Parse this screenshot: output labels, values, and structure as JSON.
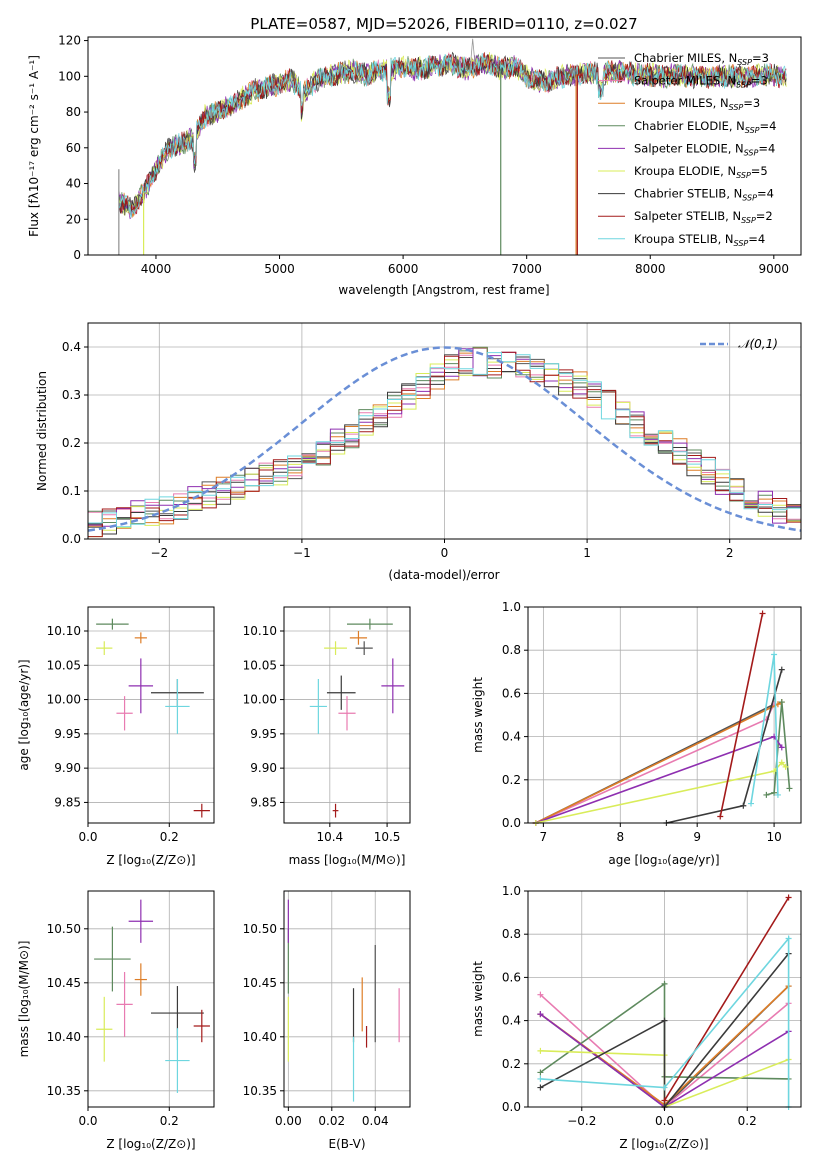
{
  "figure_title": "PLATE=0587, MJD=52026, FIBERID=0110, z=0.027",
  "colors": [
    "#555555",
    "#e87bb1",
    "#dd7d27",
    "#5e8a5e",
    "#8e2fb0",
    "#d9ec5a",
    "#3a3a3a",
    "#a31a1a",
    "#6ed6df"
  ],
  "series_labels": [
    "Chabrier MILES, N$_{SSP}$=3",
    "Salpeter MILES, N$_{SSP}$=3",
    "Kroupa MILES, N$_{SSP}$=3",
    "Chabrier ELODIE, N$_{SSP}$=4",
    "Salpeter ELODIE, N$_{SSP}$=4",
    "Kroupa ELODIE, N$_{SSP}$=5",
    "Chabrier STELIB, N$_{SSP}$=4",
    "Salpeter STELIB, N$_{SSP}$=2",
    "Kroupa STELIB, N$_{SSP}$=4"
  ],
  "series_display": [
    {
      "base": "Chabrier MILES, N",
      "sub": "SSP",
      "tail": "=3"
    },
    {
      "base": "Salpeter MILES, N",
      "sub": "SSP",
      "tail": "=3"
    },
    {
      "base": "Kroupa MILES, N",
      "sub": "SSP",
      "tail": "=3"
    },
    {
      "base": "Chabrier ELODIE, N",
      "sub": "SSP",
      "tail": "=4"
    },
    {
      "base": "Salpeter ELODIE, N",
      "sub": "SSP",
      "tail": "=4"
    },
    {
      "base": "Kroupa ELODIE, N",
      "sub": "SSP",
      "tail": "=5"
    },
    {
      "base": "Chabrier STELIB, N",
      "sub": "SSP",
      "tail": "=4"
    },
    {
      "base": "Salpeter STELIB, N",
      "sub": "SSP",
      "tail": "=2"
    },
    {
      "base": "Kroupa STELIB, N",
      "sub": "SSP",
      "tail": "=4"
    }
  ],
  "chart_data": [
    {
      "type": "line",
      "title": "PLATE=0587, MJD=52026, FIBERID=0110, z=0.027",
      "xlabel": "wavelength [Angstrom, rest frame]",
      "ylabel": "Flux [fλ10⁻¹⁷ erg cm⁻² s⁻¹ A⁻¹]",
      "xlim": [
        3450,
        9220
      ],
      "ylim": [
        0,
        122
      ],
      "xticks": [
        4000,
        5000,
        6000,
        7000,
        8000,
        9000
      ],
      "yticks": [
        0,
        20,
        40,
        60,
        80,
        100,
        120
      ],
      "legend": "upper right",
      "continuum": {
        "x": [
          3700,
          3800,
          3900,
          4000,
          4100,
          4200,
          4300,
          4400,
          4500,
          4600,
          4700,
          4800,
          4900,
          5000,
          5100,
          5200,
          5300,
          5400,
          5500,
          5600,
          5700,
          5800,
          5900,
          6000,
          6100,
          6200,
          6300,
          6400,
          6500,
          6600,
          6700,
          6800,
          6900,
          7000,
          7100,
          7200,
          7300,
          7400,
          7500,
          7600,
          7700,
          7800,
          7900,
          8000,
          8100,
          8200,
          8300,
          8400,
          8500,
          8600,
          8700,
          8800,
          8900,
          9000,
          9100
        ],
        "y": [
          30,
          26,
          35,
          48,
          60,
          62,
          65,
          78,
          80,
          83,
          88,
          92,
          94,
          96,
          98,
          91,
          98,
          100,
          102,
          103,
          101,
          103,
          104,
          105,
          104,
          105,
          106,
          107,
          104,
          106,
          107,
          104,
          106,
          100,
          97,
          98,
          100,
          101,
          102,
          101,
          103,
          102,
          101,
          101,
          100,
          101,
          100,
          100,
          100,
          100,
          100,
          100,
          101,
          100,
          100
        ]
      },
      "drop_lines": [
        {
          "series": 5,
          "x": 3900,
          "y_to": 0
        },
        {
          "series": 3,
          "x": 6790,
          "y_to": 0
        },
        {
          "series": 2,
          "x": 7400,
          "y_to": 0
        },
        {
          "series": 7,
          "x": 7410,
          "y_to": 0
        }
      ]
    },
    {
      "type": "histogram",
      "xlabel": "(data-model)/error",
      "ylabel": "Normed distribution",
      "xlim": [
        -2.5,
        2.5
      ],
      "ylim": [
        0,
        0.45
      ],
      "xticks": [
        -2,
        -1,
        0,
        1,
        2
      ],
      "yticks": [
        0.0,
        0.1,
        0.2,
        0.3,
        0.4
      ],
      "reference": {
        "name": "𝒩(0,1)",
        "mean": 0,
        "sigma": 1,
        "color": "#6a8fd6"
      },
      "bin_width": 0.1,
      "base_profile": [
        0.03,
        0.035,
        0.04,
        0.05,
        0.055,
        0.06,
        0.07,
        0.08,
        0.09,
        0.1,
        0.11,
        0.12,
        0.13,
        0.14,
        0.15,
        0.17,
        0.18,
        0.2,
        0.22,
        0.24,
        0.26,
        0.28,
        0.3,
        0.32,
        0.34,
        0.36,
        0.37,
        0.37,
        0.36,
        0.37,
        0.36,
        0.35,
        0.34,
        0.33,
        0.32,
        0.3,
        0.28,
        0.26,
        0.24,
        0.22,
        0.2,
        0.18,
        0.16,
        0.14,
        0.12,
        0.1,
        0.09,
        0.07,
        0.06,
        0.05
      ]
    },
    {
      "type": "errorbar",
      "xlabel": "Z [log₁₀(Z/Z⊙)]",
      "ylabel": "age  [log₁₀(age/yr)]",
      "xlim": [
        0,
        0.31
      ],
      "ylim": [
        9.82,
        10.135
      ],
      "xticks": [
        0.0,
        0.2
      ],
      "yticks": [
        9.85,
        9.9,
        9.95,
        10.0,
        10.05,
        10.1
      ],
      "points": [
        {
          "x": 0.13,
          "y": 10.09,
          "xerr": 0.0,
          "yerr": 0.0
        },
        {
          "x": 0.09,
          "y": 9.98,
          "xerr": 0.02,
          "yerr": 0.025
        },
        {
          "x": 0.13,
          "y": 10.09,
          "xerr": 0.015,
          "yerr": 0.008
        },
        {
          "x": 0.06,
          "y": 10.11,
          "xerr": 0.04,
          "yerr": 0.008
        },
        {
          "x": 0.13,
          "y": 10.02,
          "xerr": 0.03,
          "yerr": 0.04
        },
        {
          "x": 0.04,
          "y": 10.075,
          "xerr": 0.02,
          "yerr": 0.01
        },
        {
          "x": 0.22,
          "y": 10.01,
          "xerr": 0.065,
          "yerr": 0.02
        },
        {
          "x": 0.28,
          "y": 9.838,
          "xerr": 0.02,
          "yerr": 0.01
        },
        {
          "x": 0.22,
          "y": 9.99,
          "xerr": 0.03,
          "yerr": 0.04
        }
      ]
    },
    {
      "type": "errorbar",
      "xlabel": "mass [log₁₀(M/M⊙)]",
      "ylabel": "",
      "xlim": [
        10.32,
        10.54
      ],
      "ylim": [
        9.82,
        10.135
      ],
      "xticks": [
        10.4,
        10.5
      ],
      "yticks": [
        9.85,
        9.9,
        9.95,
        10.0,
        10.05,
        10.1
      ],
      "points": [
        {
          "x": 10.46,
          "y": 10.075,
          "xerr": 0.015,
          "yerr": 0.01
        },
        {
          "x": 10.43,
          "y": 9.98,
          "xerr": 0.015,
          "yerr": 0.025
        },
        {
          "x": 10.45,
          "y": 10.09,
          "xerr": 0.015,
          "yerr": 0.01
        },
        {
          "x": 10.47,
          "y": 10.11,
          "xerr": 0.04,
          "yerr": 0.008
        },
        {
          "x": 10.51,
          "y": 10.02,
          "xerr": 0.02,
          "yerr": 0.04
        },
        {
          "x": 10.41,
          "y": 10.075,
          "xerr": 0.02,
          "yerr": 0.01
        },
        {
          "x": 10.42,
          "y": 10.01,
          "xerr": 0.025,
          "yerr": 0.025
        },
        {
          "x": 10.41,
          "y": 9.838,
          "xerr": 0.005,
          "yerr": 0.01
        },
        {
          "x": 10.38,
          "y": 9.99,
          "xerr": 0.015,
          "yerr": 0.04
        }
      ]
    },
    {
      "type": "line",
      "xlabel": "age  [log₁₀(age/yr)]",
      "ylabel": "mass weight",
      "xlim": [
        6.8,
        10.35
      ],
      "ylim": [
        0,
        1.0
      ],
      "xticks": [
        7,
        8,
        9,
        10
      ],
      "yticks": [
        0.0,
        0.2,
        0.4,
        0.6,
        0.8,
        1.0
      ],
      "series": [
        {
          "x": [
            6.9,
            10.0
          ],
          "y": [
            0.0,
            0.55
          ]
        },
        {
          "x": [
            6.9,
            9.9,
            10.0
          ],
          "y": [
            0.0,
            0.48,
            0.55
          ]
        },
        {
          "x": [
            6.9,
            10.05,
            10.1
          ],
          "y": [
            0.0,
            0.55,
            0.56
          ]
        },
        {
          "x": [
            9.9,
            10.0,
            10.1,
            10.2
          ],
          "y": [
            0.13,
            0.14,
            0.56,
            0.16
          ]
        },
        {
          "x": [
            6.9,
            10.0,
            10.1
          ],
          "y": [
            0.0,
            0.4,
            0.35
          ]
        },
        {
          "x": [
            6.9,
            10.0,
            10.1,
            10.15
          ],
          "y": [
            0.0,
            0.24,
            0.28,
            0.26
          ]
        },
        {
          "x": [
            8.6,
            9.6,
            10.1
          ],
          "y": [
            0.0,
            0.08,
            0.71
          ]
        },
        {
          "x": [
            9.3,
            9.85
          ],
          "y": [
            0.03,
            0.97
          ]
        },
        {
          "x": [
            9.7,
            10.0,
            10.05
          ],
          "y": [
            0.09,
            0.78,
            0.13
          ]
        }
      ]
    },
    {
      "type": "errorbar",
      "xlabel": "Z [log₁₀(Z/Z⊙)]",
      "ylabel": "mass [log₁₀(M/M⊙)]",
      "xlim": [
        0,
        0.31
      ],
      "ylim": [
        10.335,
        10.535
      ],
      "xticks": [
        0.0,
        0.2
      ],
      "yticks": [
        10.35,
        10.4,
        10.45,
        10.5
      ],
      "points": [
        {
          "x": 0.12,
          "y": 10.46,
          "xerr": 0.0,
          "yerr": 0.0
        },
        {
          "x": 0.09,
          "y": 10.43,
          "xerr": 0.02,
          "yerr": 0.03
        },
        {
          "x": 0.13,
          "y": 10.453,
          "xerr": 0.015,
          "yerr": 0.015
        },
        {
          "x": 0.06,
          "y": 10.472,
          "xerr": 0.045,
          "yerr": 0.03
        },
        {
          "x": 0.13,
          "y": 10.507,
          "xerr": 0.03,
          "yerr": 0.02
        },
        {
          "x": 0.04,
          "y": 10.407,
          "xerr": 0.02,
          "yerr": 0.03
        },
        {
          "x": 0.22,
          "y": 10.422,
          "xerr": 0.065,
          "yerr": 0.025
        },
        {
          "x": 0.28,
          "y": 10.41,
          "xerr": 0.02,
          "yerr": 0.015
        },
        {
          "x": 0.22,
          "y": 10.378,
          "xerr": 0.03,
          "yerr": 0.03
        }
      ]
    },
    {
      "type": "errorbar",
      "xlabel": "E(B-V)",
      "ylabel": "",
      "xlim": [
        -0.002,
        0.056
      ],
      "ylim": [
        10.335,
        10.535
      ],
      "xticks": [
        0.0,
        0.02,
        0.04
      ],
      "yticks": [
        10.35,
        10.4,
        10.45,
        10.5
      ],
      "points": [
        {
          "x": 0.04,
          "y": 10.44,
          "xerr": 0.0,
          "yerr": 0.045
        },
        {
          "x": 0.051,
          "y": 10.42,
          "xerr": 0.0,
          "yerr": 0.025
        },
        {
          "x": 0.034,
          "y": 10.43,
          "xerr": 0.0,
          "yerr": 0.025
        },
        {
          "x": 0.0,
          "y": 10.47,
          "xerr": 0.0,
          "yerr": 0.03
        },
        {
          "x": 0.0,
          "y": 10.507,
          "xerr": 0.0,
          "yerr": 0.02
        },
        {
          "x": 0.0,
          "y": 10.407,
          "xerr": 0.0,
          "yerr": 0.03
        },
        {
          "x": 0.03,
          "y": 10.42,
          "xerr": 0.0,
          "yerr": 0.025
        },
        {
          "x": 0.036,
          "y": 10.4,
          "xerr": 0.0,
          "yerr": 0.01
        },
        {
          "x": 0.03,
          "y": 10.37,
          "xerr": 0.0,
          "yerr": 0.03
        }
      ]
    },
    {
      "type": "line",
      "xlabel": "Z [log₁₀(Z/Z⊙)]",
      "ylabel": "mass weight",
      "xlim": [
        -0.33,
        0.33
      ],
      "ylim": [
        0,
        1.0
      ],
      "xticks": [
        -0.2,
        0.0,
        0.2
      ],
      "yticks": [
        0.0,
        0.2,
        0.4,
        0.6,
        0.8,
        1.0
      ],
      "series": [
        {
          "x": [
            -0.3,
            0.0,
            0.3
          ],
          "y": [
            0.43,
            0.0,
            0.56
          ]
        },
        {
          "x": [
            -0.3,
            0.0,
            0.3
          ],
          "y": [
            0.52,
            0.0,
            0.48
          ]
        },
        {
          "x": [
            -0.3,
            0.0,
            0.3
          ],
          "y": [
            0.43,
            0.01,
            0.56
          ]
        },
        {
          "x": [
            -0.3,
            0.0,
            0.0,
            0.3
          ],
          "y": [
            0.16,
            0.57,
            0.14,
            0.13
          ]
        },
        {
          "x": [
            -0.3,
            0.0,
            0.3
          ],
          "y": [
            0.43,
            0.0,
            0.35
          ]
        },
        {
          "x": [
            -0.3,
            0.0,
            0.0,
            0.3
          ],
          "y": [
            0.26,
            0.24,
            0.0,
            0.22
          ]
        },
        {
          "x": [
            -0.3,
            0.0,
            0.0,
            0.3
          ],
          "y": [
            0.09,
            0.4,
            0.0,
            0.71
          ]
        },
        {
          "x": [
            0.0,
            0.3
          ],
          "y": [
            0.03,
            0.97
          ]
        },
        {
          "x": [
            -0.3,
            0.0,
            0.3,
            0.3
          ],
          "y": [
            0.13,
            0.09,
            0.78,
            0.0
          ]
        }
      ]
    }
  ]
}
